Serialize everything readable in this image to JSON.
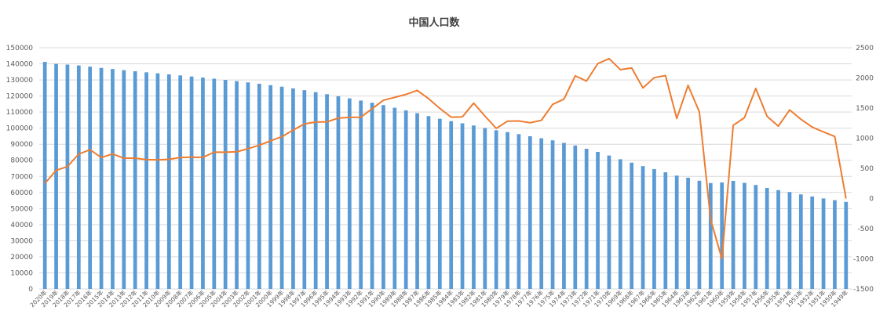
{
  "chart_data": {
    "type": "bar",
    "title": "中国人口数",
    "xlabel": "",
    "ylabel": "",
    "ylim": [
      0,
      150000
    ],
    "y2lim": [
      -1500,
      2500
    ],
    "yticks": [
      0,
      10000,
      20000,
      30000,
      40000,
      50000,
      60000,
      70000,
      80000,
      90000,
      100000,
      110000,
      120000,
      130000,
      140000,
      150000
    ],
    "y2ticks": [
      -1500,
      -1000,
      -500,
      0,
      500,
      1000,
      1500,
      2000,
      2500
    ],
    "grid": true,
    "legend": "none",
    "colors": {
      "bars": "#5b9bd5",
      "line": "#ed7d31",
      "grid": "#d9d9d9",
      "text": "#595959",
      "title": "#404040"
    },
    "categories": [
      "2020年",
      "2019年",
      "2018年",
      "2017年",
      "2016年",
      "2015年",
      "2014年",
      "2013年",
      "2012年",
      "2011年",
      "2010年",
      "2009年",
      "2008年",
      "2007年",
      "2006年",
      "2005年",
      "2004年",
      "2003年",
      "2002年",
      "2001年",
      "2000年",
      "1999年",
      "1998年",
      "1997年",
      "1996年",
      "1995年",
      "1994年",
      "1993年",
      "1992年",
      "1991年",
      "1990年",
      "1989年",
      "1988年",
      "1987年",
      "1986年",
      "1985年",
      "1984年",
      "1983年",
      "1982年",
      "1981年",
      "1980年",
      "1979年",
      "1978年",
      "1977年",
      "1976年",
      "1975年",
      "1974年",
      "1973年",
      "1972年",
      "1971年",
      "1970年",
      "1969年",
      "1968年",
      "1967年",
      "1966年",
      "1965年",
      "1964年",
      "1963年",
      "1962年",
      "1961年",
      "1960年",
      "1959年",
      "1958年",
      "1957年",
      "1956年",
      "1955年",
      "1954年",
      "1953年",
      "1952年",
      "1951年",
      "1950年",
      "1949年"
    ],
    "series": [
      {
        "type": "bar",
        "axis": "left",
        "values": [
          141212,
          140005,
          139538,
          139008,
          138271,
          137462,
          136782,
          136072,
          135404,
          134735,
          134091,
          133450,
          132802,
          132129,
          131448,
          130756,
          129988,
          129227,
          128453,
          127627,
          126743,
          125786,
          124761,
          123626,
          122389,
          121121,
          119850,
          118517,
          117171,
          115823,
          114333,
          112704,
          111026,
          109300,
          107507,
          105851,
          104357,
          103008,
          101654,
          100072,
          98705,
          97542,
          96259,
          94974,
          93717,
          92420,
          90859,
          89211,
          87177,
          85229,
          82992,
          80671,
          78534,
          76368,
          74542,
          72538,
          70499,
          69172,
          67296,
          65859,
          66207,
          67207,
          65994,
          64653,
          62828,
          61465,
          60266,
          58796,
          57482,
          56300,
          55196,
          54167
        ]
      },
      {
        "type": "line",
        "axis": "right",
        "values": [
          250,
          467,
          530,
          737,
          809,
          680,
          740,
          668,
          669,
          644,
          641,
          649,
          680,
          685,
          682,
          768,
          768,
          774,
          826,
          884,
          957,
          1025,
          1135,
          1237,
          1268,
          1271,
          1333,
          1346,
          1348,
          1490,
          1629,
          1678,
          1726,
          1793,
          1656,
          1494,
          1349,
          1354,
          1582,
          1367,
          1163,
          1283,
          1285,
          1257,
          1297,
          1561,
          1648,
          2034,
          1948,
          2237,
          2321,
          2137,
          2166,
          1834,
          2004,
          2039,
          1327,
          1877,
          1437,
          -348,
          -1000,
          1213,
          1341,
          1825,
          1363,
          1199,
          1469,
          1314,
          1184,
          1104,
          1029,
          0
        ]
      }
    ]
  }
}
